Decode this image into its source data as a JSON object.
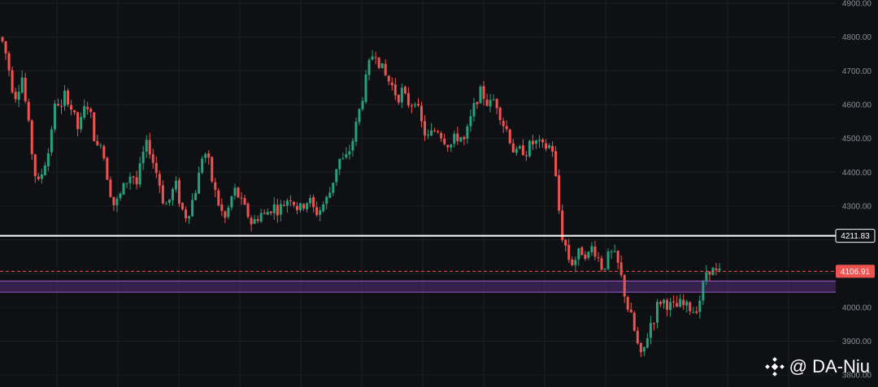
{
  "chart_data": {
    "type": "candlestick",
    "y_axis": {
      "ylim": [
        3795,
        4905
      ],
      "ticks": [
        3800,
        3900,
        4000,
        4100,
        4200,
        4300,
        4400,
        4500,
        4600,
        4700,
        4800,
        4900
      ],
      "tick_labels": [
        "3800.00",
        "3900.00",
        "4000.00",
        "4100.00",
        "4200.00",
        "4300.00",
        "4400.00",
        "4500.00",
        "4600.00",
        "4700.00",
        "4800.00",
        "4900.00"
      ],
      "position": "right"
    },
    "grid": true,
    "colors": {
      "up": "#26a17b",
      "down": "#ef5350",
      "background": "#0f1013",
      "grid": "#1c1e23",
      "zone": "#7b3fb3",
      "level_line": "#ffffff"
    },
    "horizontal_levels": [
      {
        "value": 4211.83,
        "label": "4211.83",
        "style": "solid",
        "color": "#ffffff"
      },
      {
        "value": 4106.91,
        "label": "4106.91",
        "style": "dashed",
        "color": "#ef5350"
      }
    ],
    "zones": [
      {
        "from": 4045,
        "to": 4078,
        "color": "#7b3fb3"
      }
    ],
    "price_path": [
      4800,
      4780,
      4720,
      4650,
      4620,
      4700,
      4600,
      4500,
      4400,
      4360,
      4420,
      4450,
      4550,
      4620,
      4580,
      4640,
      4600,
      4560,
      4520,
      4580,
      4600,
      4550,
      4460,
      4500,
      4420,
      4350,
      4300,
      4320,
      4350,
      4380,
      4400,
      4360,
      4420,
      4480,
      4470,
      4420,
      4380,
      4320,
      4300,
      4340,
      4360,
      4300,
      4270,
      4290,
      4330,
      4380,
      4460,
      4450,
      4380,
      4330,
      4290,
      4260,
      4300,
      4350,
      4330,
      4300,
      4280,
      4250,
      4260,
      4280,
      4270,
      4290,
      4300,
      4290,
      4300,
      4320,
      4330,
      4300,
      4290,
      4310,
      4320,
      4290,
      4280,
      4300,
      4320,
      4350,
      4410,
      4440,
      4430,
      4460,
      4500,
      4560,
      4620,
      4680,
      4740,
      4760,
      4720,
      4690,
      4670,
      4650,
      4620,
      4640,
      4610,
      4600,
      4620,
      4560,
      4520,
      4500,
      4520,
      4530,
      4510,
      4490,
      4480,
      4500,
      4510,
      4490,
      4530,
      4580,
      4620,
      4640,
      4610,
      4600,
      4620,
      4580,
      4540,
      4520,
      4470,
      4450,
      4470,
      4460,
      4480,
      4490,
      4480,
      4470,
      4480,
      4470,
      4350,
      4220,
      4180,
      4130,
      4140,
      4160,
      4170,
      4150,
      4180,
      4160,
      4120,
      4130,
      4160,
      4150,
      4120,
      4060,
      4000,
      3960,
      3900,
      3850,
      3890,
      3950,
      3970,
      4020,
      4020,
      4010,
      4000,
      4000,
      4010,
      4000,
      4000,
      3990,
      4010,
      4060,
      4120,
      4110,
      4100
    ]
  },
  "badges": {
    "upper": "4211.83",
    "lower": "4106.91"
  },
  "watermark": {
    "handle": "@ DA-Niu",
    "icon": "binance-logo-icon"
  }
}
